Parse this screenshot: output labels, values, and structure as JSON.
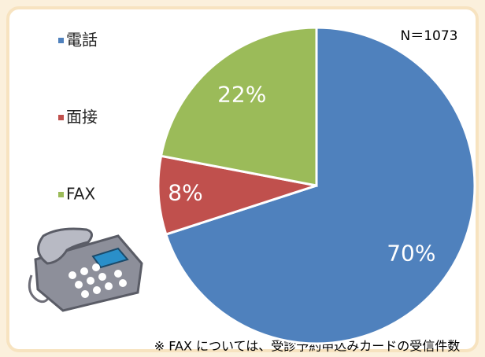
{
  "chart_data": {
    "type": "pie",
    "categories": [
      "電話",
      "面接",
      "FAX"
    ],
    "values": [
      70,
      8,
      22
    ],
    "value_labels": [
      "70%",
      "8%",
      "22%"
    ],
    "colors": [
      "#4f81bd",
      "#c0504d",
      "#9bbb59"
    ],
    "annotations": [
      "N＝1073",
      "※ FAX については、受診予約申込みカードの受信件数"
    ]
  }
}
